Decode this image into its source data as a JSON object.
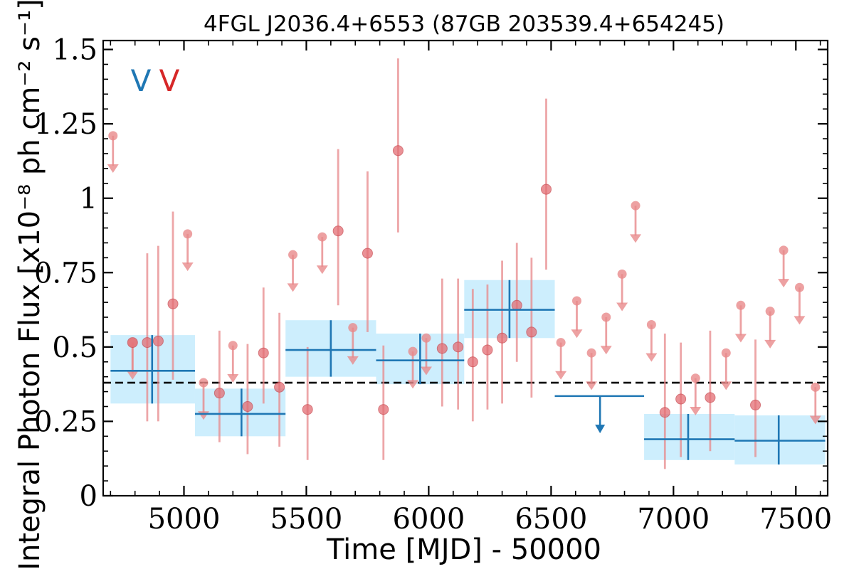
{
  "chart_data": {
    "type": "scatter",
    "title": "4FGL J2036.4+6553 (87GB 203539.4+654245)",
    "xlabel": "Time [MJD] - 50000",
    "ylabel": "Integral Photon Flux [x10⁻⁸ ph cm⁻² s⁻¹]",
    "xlim": [
      4670,
      7630
    ],
    "ylim": [
      0,
      1.53
    ],
    "x_ticks": [
      5000,
      5500,
      6000,
      6500,
      7000,
      7500
    ],
    "x_tick_labels": [
      "5000",
      "5500",
      "6000",
      "6500",
      "7000",
      "7500"
    ],
    "y_ticks": [
      0,
      0.25,
      0.5,
      0.75,
      1,
      1.25,
      1.5
    ],
    "y_tick_labels": [
      "0",
      "0.25",
      "0.5",
      "0.75",
      "1",
      "1.25",
      "1.5"
    ],
    "grid": false,
    "flags": [
      {
        "text": "V",
        "color": "#1f77b4"
      },
      {
        "text": "V",
        "color": "#d62728"
      }
    ],
    "reference_line": {
      "y": 0.38,
      "style": "dashed",
      "color": "#000000"
    },
    "colors": {
      "short_bins": "#e8898b",
      "long_bins": "#1f77b4",
      "long_bin_band": "#cdeefd"
    },
    "series": [
      {
        "kind": "detections",
        "points": [
          {
            "x": 4790,
            "y": 0.515,
            "lo": 0.41,
            "hi": 0.515
          },
          {
            "x": 4850,
            "y": 0.515,
            "lo": 0.25,
            "hi": 0.815
          },
          {
            "x": 4895,
            "y": 0.52,
            "lo": 0.25,
            "hi": 0.84
          },
          {
            "x": 4955,
            "y": 0.645,
            "lo": 0.39,
            "hi": 0.955
          },
          {
            "x": 5145,
            "y": 0.345,
            "lo": 0.18,
            "hi": 0.555
          },
          {
            "x": 5260,
            "y": 0.3,
            "lo": 0.14,
            "hi": 0.51
          },
          {
            "x": 5325,
            "y": 0.48,
            "lo": 0.31,
            "hi": 0.7
          },
          {
            "x": 5390,
            "y": 0.365,
            "lo": 0.165,
            "hi": 0.615
          },
          {
            "x": 5505,
            "y": 0.29,
            "lo": 0.12,
            "hi": 0.5
          },
          {
            "x": 5630,
            "y": 0.89,
            "lo": 0.64,
            "hi": 1.165
          },
          {
            "x": 5750,
            "y": 0.815,
            "lo": 0.55,
            "hi": 1.09
          },
          {
            "x": 5815,
            "y": 0.29,
            "lo": 0.12,
            "hi": 0.505
          },
          {
            "x": 5875,
            "y": 1.16,
            "lo": 0.885,
            "hi": 1.47
          },
          {
            "x": 6055,
            "y": 0.495,
            "lo": 0.3,
            "hi": 0.73
          },
          {
            "x": 6120,
            "y": 0.5,
            "lo": 0.29,
            "hi": 0.73
          },
          {
            "x": 6180,
            "y": 0.45,
            "lo": 0.25,
            "hi": 0.695
          },
          {
            "x": 6240,
            "y": 0.49,
            "lo": 0.29,
            "hi": 0.71
          },
          {
            "x": 6300,
            "y": 0.53,
            "lo": 0.31,
            "hi": 0.79
          },
          {
            "x": 6360,
            "y": 0.64,
            "lo": 0.45,
            "hi": 0.85
          },
          {
            "x": 6420,
            "y": 0.55,
            "lo": 0.33,
            "hi": 0.8
          },
          {
            "x": 6480,
            "y": 1.03,
            "lo": 0.76,
            "hi": 1.335
          },
          {
            "x": 6965,
            "y": 0.28,
            "lo": 0.09,
            "hi": 0.545
          },
          {
            "x": 7030,
            "y": 0.325,
            "lo": 0.13,
            "hi": 0.515
          },
          {
            "x": 7150,
            "y": 0.33,
            "lo": 0.15,
            "hi": 0.555
          },
          {
            "x": 7335,
            "y": 0.305,
            "lo": 0.13,
            "hi": 0.525
          }
        ]
      },
      {
        "kind": "upper_limits",
        "points": [
          {
            "x": 4710,
            "y": 1.21,
            "arrow_to": 1.09
          },
          {
            "x": 4790,
            "y": 0.515,
            "arrow_to": 0.395
          },
          {
            "x": 5015,
            "y": 0.88,
            "arrow_to": 0.76
          },
          {
            "x": 5080,
            "y": 0.38,
            "arrow_to": 0.26
          },
          {
            "x": 5200,
            "y": 0.505,
            "arrow_to": 0.385
          },
          {
            "x": 5445,
            "y": 0.81,
            "arrow_to": 0.69
          },
          {
            "x": 5565,
            "y": 0.87,
            "arrow_to": 0.75
          },
          {
            "x": 5690,
            "y": 0.565,
            "arrow_to": 0.445
          },
          {
            "x": 5935,
            "y": 0.485,
            "arrow_to": 0.365
          },
          {
            "x": 5990,
            "y": 0.53,
            "arrow_to": 0.41
          },
          {
            "x": 6540,
            "y": 0.515,
            "arrow_to": 0.395
          },
          {
            "x": 6605,
            "y": 0.655,
            "arrow_to": 0.535
          },
          {
            "x": 6665,
            "y": 0.48,
            "arrow_to": 0.36
          },
          {
            "x": 6725,
            "y": 0.6,
            "arrow_to": 0.48
          },
          {
            "x": 6790,
            "y": 0.745,
            "arrow_to": 0.625
          },
          {
            "x": 6845,
            "y": 0.975,
            "arrow_to": 0.855
          },
          {
            "x": 6910,
            "y": 0.575,
            "arrow_to": 0.455
          },
          {
            "x": 7090,
            "y": 0.395,
            "arrow_to": 0.275
          },
          {
            "x": 7215,
            "y": 0.48,
            "arrow_to": 0.36
          },
          {
            "x": 7275,
            "y": 0.64,
            "arrow_to": 0.52
          },
          {
            "x": 7395,
            "y": 0.62,
            "arrow_to": 0.5
          },
          {
            "x": 7450,
            "y": 0.825,
            "arrow_to": 0.705
          },
          {
            "x": 7515,
            "y": 0.7,
            "arrow_to": 0.58
          },
          {
            "x": 7580,
            "y": 0.365,
            "arrow_to": 0.245
          }
        ]
      },
      {
        "kind": "long_bins",
        "bins": [
          {
            "x0": 4700,
            "x1": 5045,
            "xc": 4870,
            "y": 0.42,
            "lo": 0.31,
            "hi": 0.54,
            "ylo": 0.31,
            "yhi": 0.54
          },
          {
            "x0": 5045,
            "x1": 5415,
            "xc": 5235,
            "y": 0.275,
            "lo": 0.2,
            "hi": 0.36,
            "ylo": 0.2,
            "yhi": 0.36
          },
          {
            "x0": 5415,
            "x1": 5785,
            "xc": 5600,
            "y": 0.49,
            "lo": 0.4,
            "hi": 0.59,
            "ylo": 0.4,
            "yhi": 0.59
          },
          {
            "x0": 5785,
            "x1": 6145,
            "xc": 5965,
            "y": 0.455,
            "lo": 0.375,
            "hi": 0.545,
            "ylo": 0.375,
            "yhi": 0.545
          },
          {
            "x0": 6145,
            "x1": 6515,
            "xc": 6330,
            "y": 0.625,
            "lo": 0.53,
            "hi": 0.725,
            "ylo": 0.53,
            "yhi": 0.725
          },
          {
            "x0": 6880,
            "x1": 7250,
            "xc": 7060,
            "y": 0.19,
            "lo": 0.12,
            "hi": 0.275,
            "ylo": 0.12,
            "yhi": 0.275
          },
          {
            "x0": 7250,
            "x1": 7620,
            "xc": 7430,
            "y": 0.185,
            "lo": 0.105,
            "hi": 0.27,
            "ylo": 0.105,
            "yhi": 0.27
          }
        ],
        "upper_limits": [
          {
            "x0": 6515,
            "x1": 6880,
            "xc": 6700,
            "y": 0.335,
            "arrow_to": 0.215
          }
        ]
      }
    ]
  }
}
